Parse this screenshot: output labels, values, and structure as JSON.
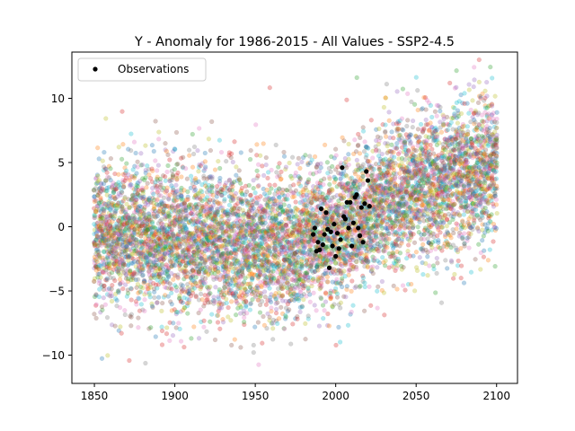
{
  "chart_data": {
    "type": "scatter",
    "title": "Y - Anomaly for 1986-2015 - All Values - SSP2-4.5",
    "xlabel": "",
    "ylabel": "",
    "xlim": [
      1836,
      2113
    ],
    "ylim": [
      -12.2,
      13.6
    ],
    "xticks": [
      "1850",
      "1900",
      "1950",
      "2000",
      "2050",
      "2100"
    ],
    "yticks": [
      "−10",
      "−5",
      "0",
      "5",
      "10"
    ],
    "grid": false,
    "legend": {
      "placement": "upper-left",
      "entries": [
        "Observations"
      ]
    },
    "ensemble": {
      "x_range": [
        1850,
        2100
      ],
      "trend": [
        {
          "x": 1850,
          "y": -0.5
        },
        {
          "x": 1900,
          "y": -1.0
        },
        {
          "x": 1950,
          "y": -1.5
        },
        {
          "x": 1975,
          "y": -1.5
        },
        {
          "x": 2000,
          "y": -0.3
        },
        {
          "x": 2025,
          "y": 1.5
        },
        {
          "x": 2050,
          "y": 3.0
        },
        {
          "x": 2075,
          "y": 3.8
        },
        {
          "x": 2100,
          "y": 4.5
        }
      ],
      "spread": 2.8,
      "points_per_year": 30,
      "colors": [
        "#1f77b4",
        "#ff7f0e",
        "#2ca02c",
        "#d62728",
        "#9467bd",
        "#8c564b",
        "#e377c2",
        "#7f7f7f",
        "#bcbd22",
        "#17becf"
      ]
    },
    "series": [
      {
        "name": "Observations",
        "color": "#000000",
        "points": [
          {
            "x": 1986,
            "y": -0.6
          },
          {
            "x": 1987,
            "y": -0.1
          },
          {
            "x": 1988,
            "y": -1.9
          },
          {
            "x": 1989,
            "y": -1.2
          },
          {
            "x": 1990,
            "y": -1.8
          },
          {
            "x": 1991,
            "y": 1.4
          },
          {
            "x": 1992,
            "y": -1.4
          },
          {
            "x": 1993,
            "y": -0.6
          },
          {
            "x": 1994,
            "y": 1.1
          },
          {
            "x": 1995,
            "y": -0.2
          },
          {
            "x": 1996,
            "y": -3.2
          },
          {
            "x": 1997,
            "y": -0.4
          },
          {
            "x": 1998,
            "y": -1.5
          },
          {
            "x": 1999,
            "y": 0.2
          },
          {
            "x": 2000,
            "y": -2.3
          },
          {
            "x": 2001,
            "y": -0.5
          },
          {
            "x": 2002,
            "y": -1.7
          },
          {
            "x": 2003,
            "y": -1.0
          },
          {
            "x": 2004,
            "y": 4.6
          },
          {
            "x": 2005,
            "y": 0.8
          },
          {
            "x": 2006,
            "y": 0.6
          },
          {
            "x": 2007,
            "y": 1.9
          },
          {
            "x": 2008,
            "y": -0.1
          },
          {
            "x": 2009,
            "y": 1.9
          },
          {
            "x": 2010,
            "y": -1.5
          },
          {
            "x": 2011,
            "y": 0.3
          },
          {
            "x": 2012,
            "y": 2.3
          },
          {
            "x": 2013,
            "y": 2.5
          },
          {
            "x": 2014,
            "y": -0.1
          },
          {
            "x": 2015,
            "y": -0.7
          },
          {
            "x": 2016,
            "y": 1.5
          },
          {
            "x": 2017,
            "y": -1.2
          },
          {
            "x": 2018,
            "y": 1.8
          },
          {
            "x": 2019,
            "y": 4.3
          },
          {
            "x": 2020,
            "y": 3.6
          },
          {
            "x": 2021,
            "y": 1.6
          }
        ]
      }
    ]
  }
}
